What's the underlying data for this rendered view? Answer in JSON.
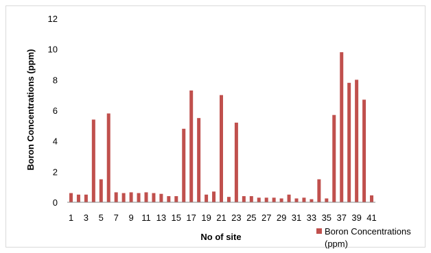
{
  "chart_data": {
    "type": "bar",
    "title": "",
    "xlabel": "No of site",
    "ylabel": "Boron Concentrations  (ppm)",
    "ylim": [
      0,
      12
    ],
    "yticks": [
      0,
      2,
      4,
      6,
      8,
      10,
      12
    ],
    "xtick_labels": [
      "1",
      "3",
      "5",
      "7",
      "9",
      "11",
      "13",
      "15",
      "17",
      "19",
      "21",
      "23",
      "25",
      "27",
      "29",
      "31",
      "33",
      "35",
      "37",
      "39",
      "41"
    ],
    "grid": false,
    "legend_position": "bottom-right",
    "categories": [
      1,
      2,
      3,
      4,
      5,
      6,
      7,
      8,
      9,
      10,
      11,
      12,
      13,
      14,
      15,
      16,
      17,
      18,
      19,
      20,
      21,
      22,
      23,
      24,
      25,
      26,
      27,
      28,
      29,
      30,
      31,
      32,
      33,
      34,
      35,
      36,
      37,
      38,
      39,
      40,
      41
    ],
    "series": [
      {
        "name": "Boron Concentrations (ppm)",
        "legend_lines": [
          "Boron Concentrations",
          "(ppm)"
        ],
        "color": "#C0504D",
        "values": [
          0.6,
          0.5,
          0.5,
          5.4,
          1.5,
          5.8,
          0.65,
          0.6,
          0.65,
          0.6,
          0.65,
          0.6,
          0.55,
          0.4,
          0.4,
          4.8,
          7.3,
          5.5,
          0.5,
          0.7,
          7.0,
          0.35,
          5.2,
          0.4,
          0.4,
          0.3,
          0.3,
          0.3,
          0.25,
          0.5,
          0.25,
          0.3,
          0.2,
          1.5,
          0.25,
          5.7,
          9.8,
          7.8,
          8.0,
          6.7,
          0.45
        ]
      }
    ]
  }
}
